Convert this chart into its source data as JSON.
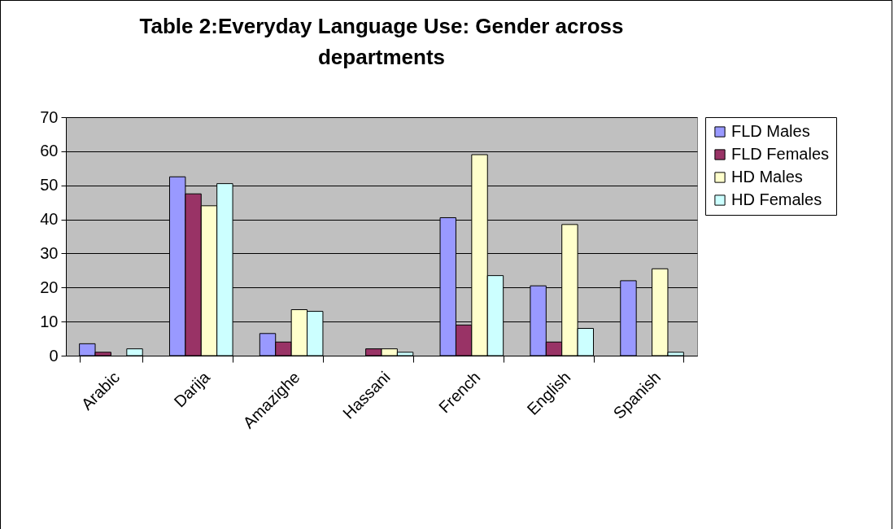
{
  "chart_data": {
    "type": "bar",
    "title": "Table 2:Everyday Language Use: Gender across departments",
    "categories": [
      "Arabic",
      "Darija",
      "Amazighe",
      "Hassani",
      "French",
      "English",
      "Spanish"
    ],
    "series": [
      {
        "name": "FLD Males",
        "color": "#9999ff",
        "values": [
          3.5,
          52.5,
          6.5,
          null,
          40.5,
          20.5,
          22
        ]
      },
      {
        "name": "FLD Females",
        "color": "#993366",
        "values": [
          1,
          47.5,
          4,
          2,
          9,
          4,
          null
        ]
      },
      {
        "name": "HD Males",
        "color": "#ffffcc",
        "values": [
          null,
          44,
          13.5,
          2,
          59,
          38.5,
          25.5
        ]
      },
      {
        "name": "HD Females",
        "color": "#ccffff",
        "values": [
          2,
          50.5,
          13,
          1,
          23.5,
          8,
          1
        ]
      }
    ],
    "ylim": [
      0,
      70
    ],
    "yticks": [
      0,
      10,
      20,
      30,
      40,
      50,
      60,
      70
    ],
    "grid": "y",
    "legend": "right"
  }
}
